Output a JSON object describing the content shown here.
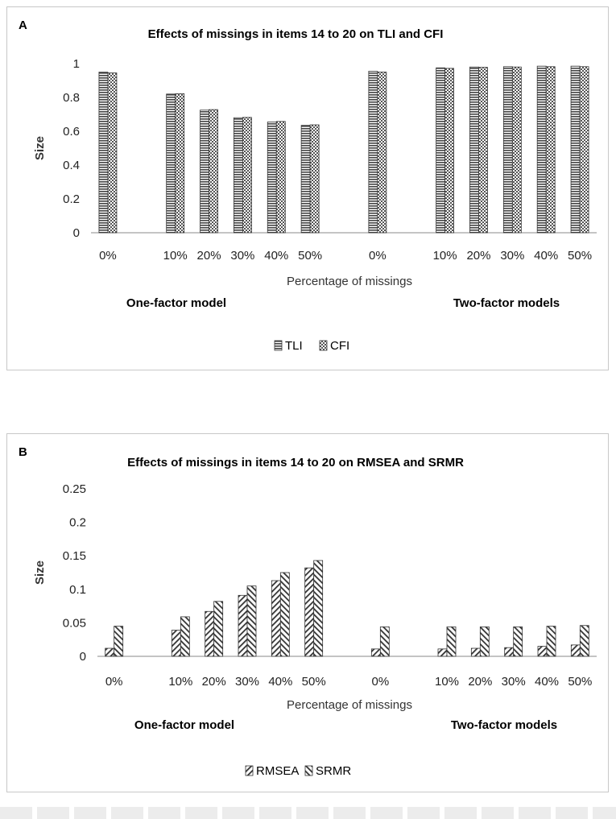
{
  "panels": [
    {
      "letter": "A",
      "chart_data": {
        "type": "bar",
        "title": "Effects of missings in items 14 to 20 on TLI and CFI",
        "xlabel": "Percentage of missings",
        "ylabel": "Size",
        "ylim": [
          0,
          1
        ],
        "yticks": [
          "0",
          "0.2",
          "0.4",
          "0.6",
          "0.8",
          "1"
        ],
        "categories": [
          "0%",
          "",
          "10%",
          "20%",
          "30%",
          "40%",
          "50%",
          "",
          "0%",
          "",
          "10%",
          "20%",
          "30%",
          "40%",
          "50%"
        ],
        "series": [
          {
            "name": "TLI",
            "pattern": "hlines",
            "values": [
              0.95,
              null,
              0.82,
              0.725,
              0.68,
              0.655,
              0.635,
              null,
              0.955,
              null,
              0.975,
              0.98,
              0.982,
              0.985,
              0.985
            ]
          },
          {
            "name": "CFI",
            "pattern": "checker",
            "values": [
              0.945,
              null,
              0.822,
              0.728,
              0.682,
              0.658,
              0.638,
              null,
              0.95,
              null,
              0.972,
              0.978,
              0.98,
              0.982,
              0.982
            ]
          }
        ],
        "groups": [
          "One-factor model",
          "Two-factor models"
        ],
        "legend_position": "bottom"
      }
    },
    {
      "letter": "B",
      "chart_data": {
        "type": "bar",
        "title": "Effects of missings in items 14 to 20 on RMSEA and SRMR",
        "xlabel": "Percentage of missings",
        "ylabel": "Size",
        "ylim": [
          0,
          0.25
        ],
        "yticks": [
          "0",
          "0.05",
          "0.1",
          "0.15",
          "0.2",
          "0.25"
        ],
        "categories": [
          "0%",
          "",
          "10%",
          "20%",
          "30%",
          "40%",
          "50%",
          "",
          "0%",
          "",
          "10%",
          "20%",
          "30%",
          "40%",
          "50%"
        ],
        "series": [
          {
            "name": "RMSEA",
            "pattern": "diag-up",
            "values": [
              0.012,
              null,
              0.039,
              0.067,
              0.091,
              0.113,
              0.132,
              null,
              0.011,
              null,
              0.011,
              0.012,
              0.013,
              0.015,
              0.017
            ]
          },
          {
            "name": "SRMR",
            "pattern": "diag-down",
            "values": [
              0.045,
              null,
              0.059,
              0.082,
              0.105,
              0.125,
              0.143,
              null,
              0.044,
              null,
              0.044,
              0.044,
              0.044,
              0.045,
              0.046
            ]
          }
        ],
        "groups": [
          "One-factor model",
          "Two-factor models"
        ],
        "legend_position": "bottom"
      }
    }
  ]
}
